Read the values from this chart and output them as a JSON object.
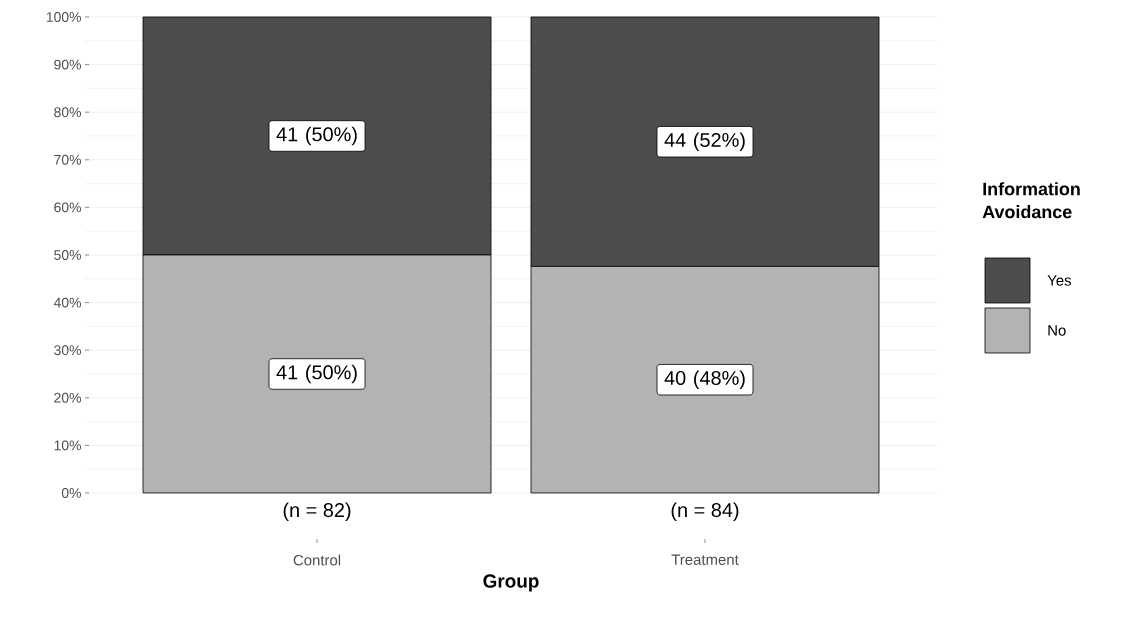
{
  "chart_data": {
    "type": "bar",
    "stacked": true,
    "xlabel": "Group",
    "legend_title": "Information Avoidance",
    "legend": "right",
    "grid": "y",
    "categories": [
      "Control",
      "Treatment"
    ],
    "ylim": [
      0,
      100
    ],
    "yticks": [
      {
        "value": 0,
        "label": "0%"
      },
      {
        "value": 10,
        "label": "10%"
      },
      {
        "value": 20,
        "label": "20%"
      },
      {
        "value": 30,
        "label": "30%"
      },
      {
        "value": 40,
        "label": "40%"
      },
      {
        "value": 50,
        "label": "50%"
      },
      {
        "value": 60,
        "label": "60%"
      },
      {
        "value": 70,
        "label": "70%"
      },
      {
        "value": 80,
        "label": "80%"
      },
      {
        "value": 90,
        "label": "90%"
      },
      {
        "value": 100,
        "label": "100%"
      }
    ],
    "series": [
      {
        "name": "No",
        "color": "#b3b3b3",
        "values": [
          50,
          47.6
        ],
        "value_labels": [
          "41 (50%)",
          "40 (48%)"
        ]
      },
      {
        "name": "Yes",
        "color": "#4d4d4d",
        "values": [
          50,
          52.4
        ],
        "value_labels": [
          "41 (50%)",
          "44 (52%)"
        ]
      }
    ],
    "annotations": [
      {
        "text": "(n = 82)",
        "x": "Control"
      },
      {
        "text": "(n = 84)",
        "x": "Treatment"
      }
    ]
  }
}
